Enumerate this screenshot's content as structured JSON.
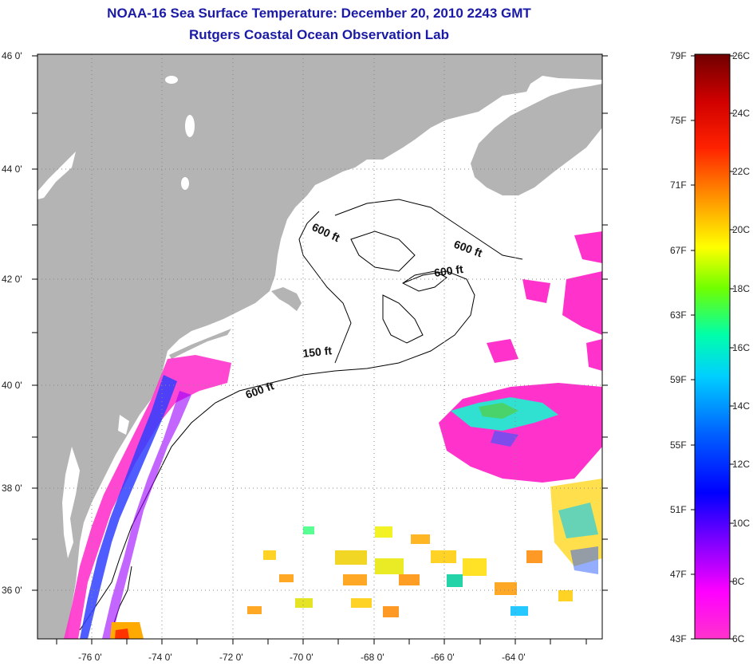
{
  "title": "NOAA-16 Sea Surface Temperature:  December 20, 2010 2243 GMT",
  "subtitle": "Rutgers Coastal Ocean Observation Lab",
  "map": {
    "lon_ticks": [
      "-76 0'",
      "-74 0'",
      "-72 0'",
      "-70 0'",
      "-68 0'",
      "-66 0'",
      "-64 0'"
    ],
    "lat_ticks": [
      "46 0'",
      "44 0'",
      "42 0'",
      "40 0'",
      "38 0'",
      "36 0'"
    ],
    "contour_labels": [
      "600 ft",
      "600 ft",
      "600 ft",
      "150 ft",
      "600 ft"
    ],
    "land_color": "#b4b4b4",
    "ocean_color": "#ffffff"
  },
  "colorbar": {
    "fahrenheit": [
      "79F",
      "75F",
      "71F",
      "67F",
      "63F",
      "59F",
      "55F",
      "51F",
      "47F",
      "43F"
    ],
    "celsius": [
      "26C",
      "24C",
      "22C",
      "20C",
      "18C",
      "16C",
      "14C",
      "12C",
      "10C",
      "8C",
      "6C"
    ],
    "colors": [
      "#7a0000",
      "#ff0000",
      "#ff8c00",
      "#ffff00",
      "#7cff00",
      "#00ff7f",
      "#00e5ff",
      "#0078ff",
      "#0000ff",
      "#8000ff",
      "#ff00ff"
    ]
  }
}
